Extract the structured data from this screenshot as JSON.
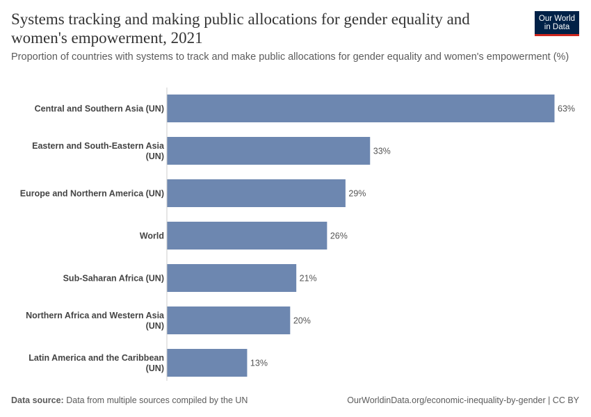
{
  "header": {
    "title": "Systems tracking and making public allocations for gender equality and women's empowerment, 2021",
    "subtitle": "Proportion of countries with systems to track and make public allocations for gender equality and women's empowerment (%)",
    "logo_line1": "Our World",
    "logo_line2": "in Data"
  },
  "colors": {
    "bar": "#6d87b0",
    "axis": "#cccccc",
    "logo_bg": "#002147",
    "logo_accent": "#ce261e"
  },
  "chart_data": {
    "type": "bar",
    "orientation": "horizontal",
    "title": "Systems tracking and making public allocations for gender equality and women's empowerment, 2021",
    "xlabel": "",
    "ylabel": "",
    "unit": "%",
    "xlim": [
      0,
      63
    ],
    "categories": [
      [
        "Central and Southern Asia (UN)"
      ],
      [
        "Eastern and South-Eastern Asia",
        "(UN)"
      ],
      [
        "Europe and Northern America (UN)"
      ],
      [
        "World"
      ],
      [
        "Sub-Saharan Africa (UN)"
      ],
      [
        "Northern Africa and Western Asia",
        "(UN)"
      ],
      [
        "Latin America and the Caribbean",
        "(UN)"
      ]
    ],
    "values": [
      63,
      33,
      29,
      26,
      21,
      20,
      13
    ],
    "value_labels": [
      "63%",
      "33%",
      "29%",
      "26%",
      "21%",
      "20%",
      "13%"
    ]
  },
  "footer": {
    "source_label": "Data source:",
    "source_text": "Data from multiple sources compiled by the UN",
    "credit": "OurWorldinData.org/economic-inequality-by-gender | CC BY"
  }
}
